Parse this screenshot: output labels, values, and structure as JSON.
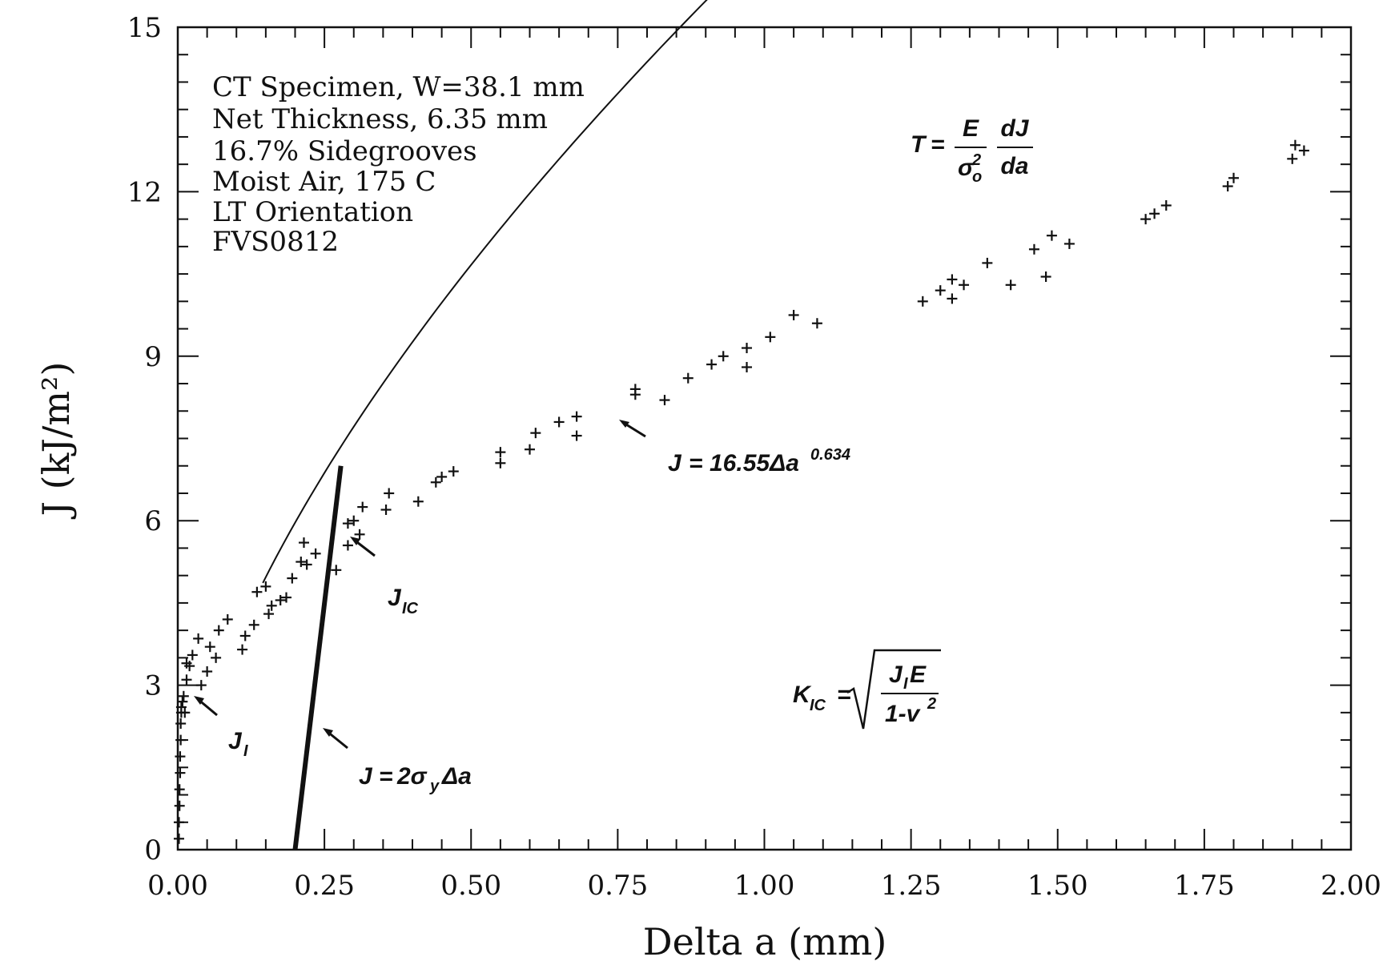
{
  "chart_data": {
    "type": "scatter",
    "title": "",
    "xlabel": "Delta a (mm)",
    "ylabel": "J (kJ/m²)",
    "xlim": [
      0,
      2.0
    ],
    "ylim": [
      0,
      15
    ],
    "xticks": [
      "0.00",
      "0.25",
      "0.50",
      "0.75",
      "1.00",
      "1.25",
      "1.50",
      "1.75",
      "2.00"
    ],
    "yticks": [
      "0",
      "3",
      "6",
      "9",
      "12",
      "15"
    ],
    "grid": false,
    "info_box": [
      "CT Specimen, W=38.1 mm",
      "Net Thickness, 6.35 mm",
      "16.7% Sidegrooves",
      "Moist Air, 175 C",
      "LT Orientation",
      "FVS0812"
    ],
    "series": [
      {
        "marker": "+",
        "points": [
          [
            0.002,
            0.2
          ],
          [
            0.002,
            0.5
          ],
          [
            0.003,
            0.8
          ],
          [
            0.003,
            1.1
          ],
          [
            0.004,
            1.4
          ],
          [
            0.004,
            1.7
          ],
          [
            0.005,
            2.0
          ],
          [
            0.005,
            2.3
          ],
          [
            0.006,
            2.5
          ],
          [
            0.006,
            2.6
          ],
          [
            0.008,
            2.7
          ],
          [
            0.01,
            2.8
          ],
          [
            0.012,
            2.5
          ],
          [
            0.015,
            3.1
          ],
          [
            0.015,
            3.4
          ],
          [
            0.02,
            3.35
          ],
          [
            0.025,
            3.55
          ],
          [
            0.035,
            3.85
          ],
          [
            0.04,
            3.0
          ],
          [
            0.05,
            3.25
          ],
          [
            0.055,
            3.7
          ],
          [
            0.065,
            3.5
          ],
          [
            0.07,
            4.0
          ],
          [
            0.085,
            4.2
          ],
          [
            0.11,
            3.65
          ],
          [
            0.115,
            3.9
          ],
          [
            0.13,
            4.1
          ],
          [
            0.135,
            4.7
          ],
          [
            0.15,
            4.8
          ],
          [
            0.155,
            4.3
          ],
          [
            0.16,
            4.45
          ],
          [
            0.175,
            4.55
          ],
          [
            0.185,
            4.6
          ],
          [
            0.195,
            4.95
          ],
          [
            0.21,
            5.25
          ],
          [
            0.215,
            5.6
          ],
          [
            0.22,
            5.2
          ],
          [
            0.235,
            5.4
          ],
          [
            0.27,
            5.1
          ],
          [
            0.29,
            5.55
          ],
          [
            0.29,
            5.95
          ],
          [
            0.3,
            6.0
          ],
          [
            0.31,
            5.75
          ],
          [
            0.315,
            6.25
          ],
          [
            0.355,
            6.2
          ],
          [
            0.36,
            6.5
          ],
          [
            0.41,
            6.35
          ],
          [
            0.44,
            6.7
          ],
          [
            0.45,
            6.8
          ],
          [
            0.47,
            6.9
          ],
          [
            0.55,
            7.05
          ],
          [
            0.55,
            7.25
          ],
          [
            0.6,
            7.3
          ],
          [
            0.61,
            7.6
          ],
          [
            0.65,
            7.8
          ],
          [
            0.68,
            7.55
          ],
          [
            0.68,
            7.9
          ],
          [
            0.78,
            8.3
          ],
          [
            0.78,
            8.4
          ],
          [
            0.83,
            8.2
          ],
          [
            0.87,
            8.6
          ],
          [
            0.91,
            8.85
          ],
          [
            0.93,
            9.0
          ],
          [
            0.97,
            8.8
          ],
          [
            0.97,
            9.15
          ],
          [
            1.01,
            9.35
          ],
          [
            1.05,
            9.75
          ],
          [
            1.09,
            9.6
          ],
          [
            1.27,
            10.0
          ],
          [
            1.3,
            10.2
          ],
          [
            1.32,
            10.05
          ],
          [
            1.32,
            10.4
          ],
          [
            1.34,
            10.3
          ],
          [
            1.38,
            10.7
          ],
          [
            1.42,
            10.3
          ],
          [
            1.46,
            10.95
          ],
          [
            1.48,
            10.45
          ],
          [
            1.49,
            11.2
          ],
          [
            1.52,
            11.05
          ],
          [
            1.65,
            11.5
          ],
          [
            1.665,
            11.6
          ],
          [
            1.685,
            11.75
          ],
          [
            1.79,
            12.1
          ],
          [
            1.8,
            12.25
          ],
          [
            1.9,
            12.6
          ],
          [
            1.905,
            12.85
          ],
          [
            1.92,
            12.75
          ]
        ]
      }
    ],
    "curves": [
      {
        "label": "J = 16.55Δa^0.634",
        "kind": "power",
        "coef": 16.55,
        "exp": 0.634,
        "x_from": 0.145,
        "x_to": 1.52
      },
      {
        "label": "J = 2σyΔa",
        "kind": "line",
        "from": [
          0.2,
          0.0
        ],
        "to": [
          0.278,
          7.0
        ]
      }
    ],
    "annotations": {
      "power_law": {
        "prefix": "J",
        "eq": "=",
        "body": "16.55Δa",
        "exponent": "0.634"
      },
      "blunting": {
        "prefix": "J",
        "eq": "=",
        "mid": "2σ",
        "sub": "y",
        "body": "Δa"
      },
      "jic": {
        "main": "J",
        "sub": "IC"
      },
      "ji": {
        "main": "J",
        "sub": "I"
      },
      "tearing": {
        "lhs": "T",
        "eq": "=",
        "num1": "E",
        "den1_sigma": "σ",
        "den1_sup": "2",
        "den1_sub": "o",
        "num2": "dJ",
        "den2": "da"
      },
      "kic": {
        "lhs_main": "K",
        "lhs_sub": "IC",
        "eq": "=",
        "num_main": "J",
        "num_sub": "I",
        "num_tail": "E",
        "den_main": "1-v",
        "den_sup": "2"
      }
    }
  }
}
